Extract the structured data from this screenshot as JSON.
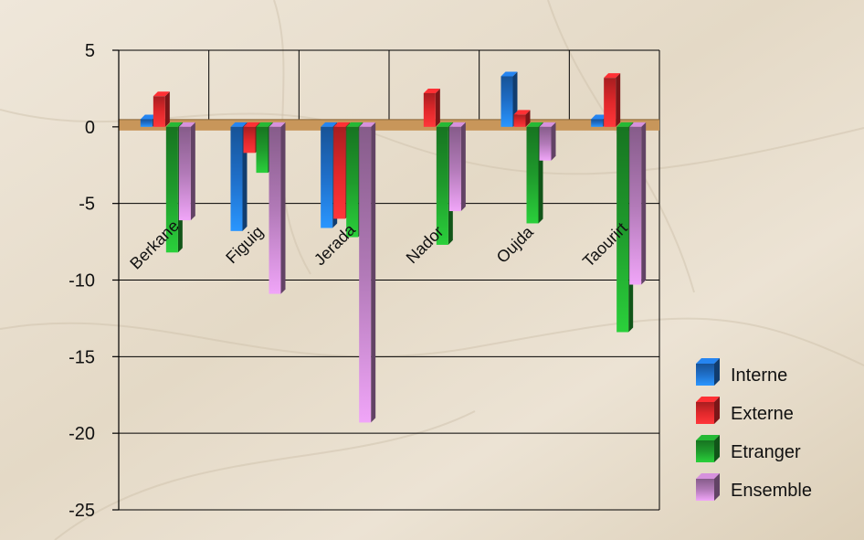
{
  "chart_data": {
    "type": "bar",
    "title": "",
    "xlabel": "",
    "ylabel": "",
    "categories": [
      "Berkane",
      "Figuig",
      "Jerada",
      "Nador",
      "Oujda",
      "Taourirt"
    ],
    "series": [
      {
        "name": "Interne",
        "values": [
          0.5,
          -6.8,
          -6.6,
          0,
          3.3,
          0.5
        ],
        "color": "#1f6fc9"
      },
      {
        "name": "Externe",
        "values": [
          2.0,
          -1.7,
          -6.0,
          2.2,
          0.8,
          3.2
        ],
        "color": "#e0282b"
      },
      {
        "name": "Etranger",
        "values": [
          -8.2,
          -3.0,
          -7.2,
          -7.7,
          -6.3,
          -13.4
        ],
        "color": "#1f9a2c"
      },
      {
        "name": "Ensemble",
        "values": [
          -6.1,
          -10.9,
          -19.3,
          -5.5,
          -2.2,
          -10.3
        ],
        "color": "#b27ab8"
      }
    ],
    "ylim": [
      -25,
      5
    ],
    "yticks": [
      "5",
      "0",
      "-5",
      "-10",
      "-15",
      "-20",
      "-25"
    ],
    "grid": true,
    "legend_position": "bottom-right",
    "colors": {
      "zero_band": "#c8965a",
      "grid": "#000000",
      "background": "#e7ddcd"
    }
  }
}
